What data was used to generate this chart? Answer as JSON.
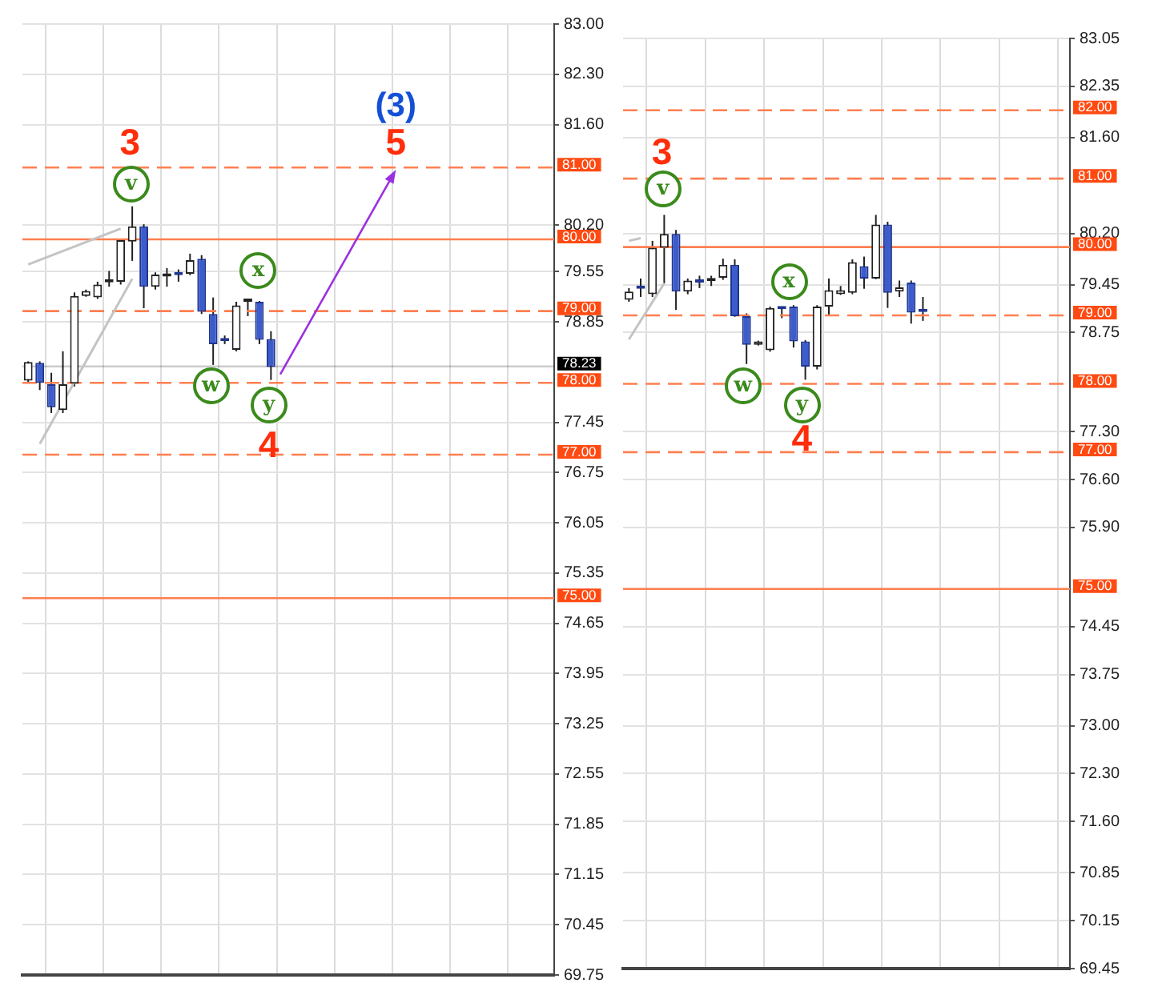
{
  "chart_data": [
    {
      "type": "candlestick",
      "categories": [
        null,
        null,
        null,
        null,
        null,
        null,
        null,
        null,
        null,
        null,
        null,
        null,
        null,
        null,
        null,
        null,
        null,
        null,
        null,
        null,
        null,
        null,
        null,
        null,
        null,
        null,
        null,
        null,
        null,
        null,
        null,
        null,
        null,
        null,
        null,
        null,
        null,
        null,
        null,
        null,
        null,
        null,
        null,
        null,
        null,
        null
      ],
      "ohlc": [
        [
          78.03,
          78.3,
          78.0,
          78.29
        ],
        [
          78.28,
          78.3,
          77.9,
          78.0
        ],
        [
          77.98,
          78.14,
          77.58,
          77.66
        ],
        [
          77.62,
          78.44,
          77.58,
          77.98
        ],
        [
          77.99,
          79.26,
          77.95,
          79.21
        ],
        [
          79.21,
          79.3,
          79.2,
          79.28
        ],
        [
          79.19,
          79.41,
          79.17,
          79.37
        ],
        [
          79.4,
          79.56,
          79.34,
          79.41
        ],
        [
          79.41,
          80.0,
          79.37,
          79.99
        ],
        [
          79.97,
          80.46,
          79.7,
          80.18
        ],
        [
          80.18,
          80.21,
          79.04,
          79.34
        ],
        [
          79.34,
          79.54,
          79.3,
          79.51
        ],
        [
          79.48,
          79.6,
          79.34,
          79.5
        ],
        [
          79.52,
          79.58,
          79.41,
          79.5
        ],
        [
          79.52,
          79.8,
          79.5,
          79.71
        ],
        [
          79.73,
          79.78,
          78.96,
          78.99
        ],
        [
          78.96,
          79.19,
          78.25,
          78.54
        ],
        [
          78.6,
          78.66,
          78.54,
          78.58
        ],
        [
          78.46,
          79.13,
          78.44,
          79.08
        ],
        [
          79.13,
          79.14,
          78.93,
          79.14
        ],
        [
          79.13,
          79.14,
          78.54,
          78.6
        ],
        [
          78.61,
          78.72,
          78.04,
          78.22
        ],
        null,
        null,
        null,
        null,
        null,
        null,
        null,
        null,
        null,
        null,
        null,
        null,
        null,
        null,
        null,
        null,
        null,
        null,
        null,
        null,
        null,
        null,
        null,
        null
      ],
      "series": [
        {
          "type": "line",
          "color": "#c4c4c4",
          "values": [
            79.65,
            null,
            null,
            null,
            null,
            null,
            null,
            null,
            80.15,
            null,
            null,
            null,
            null,
            null,
            null,
            null,
            null,
            null,
            null,
            null,
            null,
            null,
            null,
            null,
            null,
            null,
            null,
            null,
            null,
            null,
            null,
            null,
            null,
            null,
            null,
            null,
            null,
            null,
            null,
            null,
            null,
            null,
            null,
            null,
            null,
            null
          ]
        },
        {
          "type": "line",
          "color": "#c4c4c4",
          "values": [
            null,
            77.15,
            null,
            null,
            null,
            null,
            null,
            null,
            null,
            79.45,
            null,
            null,
            null,
            null,
            null,
            null,
            null,
            null,
            null,
            null,
            null,
            null,
            null,
            null,
            null,
            null,
            null,
            null,
            null,
            null,
            null,
            null,
            null,
            null,
            null,
            null,
            null,
            null,
            null,
            null,
            null,
            null,
            null,
            null,
            null,
            null
          ]
        }
      ],
      "ylim": [
        69.75,
        83.0
      ],
      "yticks": [
        {
          "value": 83.0,
          "label": "83.00"
        },
        {
          "value": 82.3,
          "label": "82.30"
        },
        {
          "value": 81.6,
          "label": "81.60"
        },
        {
          "value": 80.2,
          "label": "80.20"
        },
        {
          "value": 79.55,
          "label": "79.55"
        },
        {
          "value": 78.85,
          "label": "78.85"
        },
        {
          "value": 77.45,
          "label": "77.45"
        },
        {
          "value": 76.75,
          "label": "76.75"
        },
        {
          "value": 76.05,
          "label": "76.05"
        },
        {
          "value": 75.35,
          "label": "75.35"
        },
        {
          "value": 74.65,
          "label": "74.65"
        },
        {
          "value": 73.95,
          "label": "73.95"
        },
        {
          "value": 73.25,
          "label": "73.25"
        },
        {
          "value": 72.55,
          "label": "72.55"
        },
        {
          "value": 71.85,
          "label": "71.85"
        },
        {
          "value": 71.15,
          "label": "71.15"
        },
        {
          "value": 70.45,
          "label": "70.45"
        },
        {
          "value": 69.75,
          "label": "69.75"
        }
      ],
      "ref_lines": [
        {
          "axis": "y",
          "value": 81.0,
          "label": "81.00",
          "color": "#ff7f50",
          "line_style": "dashed"
        },
        {
          "axis": "y",
          "value": 80.0,
          "label": "80.00",
          "color": "#ff7f50",
          "line_style": "solid"
        },
        {
          "axis": "y",
          "value": 79.0,
          "label": "79.00",
          "color": "#ff7f50",
          "line_style": "dashed"
        },
        {
          "axis": "y",
          "value": 78.23,
          "label": "78.23",
          "color": "#000000",
          "line_style": "solid"
        },
        {
          "axis": "y",
          "value": 78.0,
          "label": "78.00",
          "color": "#ff7f50",
          "line_style": "dashed"
        },
        {
          "axis": "y",
          "value": 77.0,
          "label": "77.00",
          "color": "#ff7f50",
          "line_style": "dashed"
        },
        {
          "axis": "y",
          "value": 75.0,
          "label": "75.00",
          "color": "#ff7f50",
          "line_style": "solid"
        }
      ],
      "annotations": [
        "(3)",
        "5",
        "3",
        "v",
        "x",
        "w",
        "y",
        "4"
      ],
      "grid": true,
      "tick_labels": "y",
      "legend": false
    },
    {
      "type": "candlestick",
      "categories": [
        null,
        null,
        null,
        null,
        null,
        null,
        null,
        null,
        null,
        null,
        null,
        null,
        null,
        null,
        null,
        null,
        null,
        null,
        null,
        null,
        null,
        null,
        null,
        null,
        null,
        null,
        null,
        null,
        null,
        null,
        null,
        null,
        null,
        null,
        null,
        null,
        null,
        null
      ],
      "ohlc": [
        [
          79.23,
          79.4,
          79.2,
          79.35
        ],
        [
          79.41,
          79.54,
          79.27,
          79.39
        ],
        [
          79.31,
          80.09,
          79.27,
          79.99
        ],
        [
          79.99,
          80.47,
          79.47,
          80.19
        ],
        [
          80.19,
          80.25,
          79.08,
          79.35
        ],
        [
          79.35,
          79.54,
          79.31,
          79.51
        ],
        [
          79.5,
          79.58,
          79.4,
          79.48
        ],
        [
          79.5,
          79.58,
          79.43,
          79.52
        ],
        [
          79.55,
          79.83,
          79.52,
          79.74
        ],
        [
          79.74,
          79.82,
          78.98,
          78.99
        ],
        [
          78.99,
          79.03,
          78.29,
          78.57
        ],
        [
          78.57,
          78.63,
          78.56,
          78.62
        ],
        [
          78.49,
          79.13,
          78.47,
          79.11
        ],
        [
          79.11,
          79.12,
          78.96,
          79.09
        ],
        [
          79.13,
          79.15,
          78.53,
          78.62
        ],
        [
          78.62,
          78.64,
          78.06,
          78.25
        ],
        [
          78.25,
          79.15,
          78.21,
          79.13
        ],
        [
          79.13,
          79.54,
          78.99,
          79.37
        ],
        [
          79.31,
          79.43,
          79.3,
          79.37
        ],
        [
          79.33,
          79.82,
          79.31,
          79.78
        ],
        [
          79.72,
          79.86,
          79.39,
          79.54
        ],
        [
          79.54,
          80.47,
          79.53,
          80.33
        ],
        [
          80.33,
          80.37,
          79.11,
          79.33
        ],
        [
          79.35,
          79.51,
          79.27,
          79.41
        ],
        [
          79.48,
          79.51,
          78.88,
          79.04
        ],
        [
          79.08,
          79.27,
          78.92,
          79.05
        ],
        null,
        null,
        null,
        null,
        null,
        null,
        null,
        null,
        null,
        null,
        null,
        null
      ],
      "series": [
        {
          "type": "line",
          "color": "#c4c4c4",
          "values": [
            80.09,
            80.13,
            null,
            null,
            null,
            null,
            null,
            null,
            null,
            null,
            null,
            null,
            null,
            null,
            null,
            null,
            null,
            null,
            null,
            null,
            null,
            null,
            null,
            null,
            null,
            null,
            null,
            null,
            null,
            null,
            null,
            null,
            null,
            null,
            null,
            null,
            null,
            null
          ]
        },
        {
          "type": "line",
          "color": "#c4c4c4",
          "values": [
            78.65,
            null,
            null,
            79.47,
            null,
            null,
            null,
            null,
            null,
            null,
            null,
            null,
            null,
            null,
            null,
            null,
            null,
            null,
            null,
            null,
            null,
            null,
            null,
            null,
            null,
            null,
            null,
            null,
            null,
            null,
            null,
            null,
            null,
            null,
            null,
            null,
            null,
            null
          ]
        }
      ],
      "ylim": [
        69.45,
        83.05
      ],
      "yticks": [
        {
          "value": 83.05,
          "label": "83.05"
        },
        {
          "value": 82.35,
          "label": "82.35"
        },
        {
          "value": 81.6,
          "label": "81.60"
        },
        {
          "value": 80.2,
          "label": "80.20"
        },
        {
          "value": 79.45,
          "label": "79.45"
        },
        {
          "value": 78.75,
          "label": "78.75"
        },
        {
          "value": 77.3,
          "label": "77.30"
        },
        {
          "value": 76.6,
          "label": "76.60"
        },
        {
          "value": 75.9,
          "label": "75.90"
        },
        {
          "value": 74.45,
          "label": "74.45"
        },
        {
          "value": 73.75,
          "label": "73.75"
        },
        {
          "value": 73.0,
          "label": "73.00"
        },
        {
          "value": 72.3,
          "label": "72.30"
        },
        {
          "value": 71.6,
          "label": "71.60"
        },
        {
          "value": 70.85,
          "label": "70.85"
        },
        {
          "value": 70.15,
          "label": "70.15"
        },
        {
          "value": 69.45,
          "label": "69.45"
        }
      ],
      "ref_lines": [
        {
          "axis": "y",
          "value": 82.0,
          "label": "82.00",
          "color": "#ff7f50",
          "line_style": "dashed"
        },
        {
          "axis": "y",
          "value": 81.0,
          "label": "81.00",
          "color": "#ff7f50",
          "line_style": "dashed"
        },
        {
          "axis": "y",
          "value": 80.0,
          "label": "80.00",
          "color": "#ff7f50",
          "line_style": "solid"
        },
        {
          "axis": "y",
          "value": 79.0,
          "label": "79.00",
          "color": "#ff7f50",
          "line_style": "dashed"
        },
        {
          "axis": "y",
          "value": 78.0,
          "label": "78.00",
          "color": "#ff7f50",
          "line_style": "dashed"
        },
        {
          "axis": "y",
          "value": 77.0,
          "label": "77.00",
          "color": "#ff7f50",
          "line_style": "dashed"
        },
        {
          "axis": "y",
          "value": 75.0,
          "label": "75.00",
          "color": "#ff7f50",
          "line_style": "solid"
        }
      ],
      "annotations": [
        "3",
        "v",
        "x",
        "w",
        "y",
        "4"
      ],
      "grid": true,
      "tick_labels": "y",
      "legend": false
    }
  ]
}
